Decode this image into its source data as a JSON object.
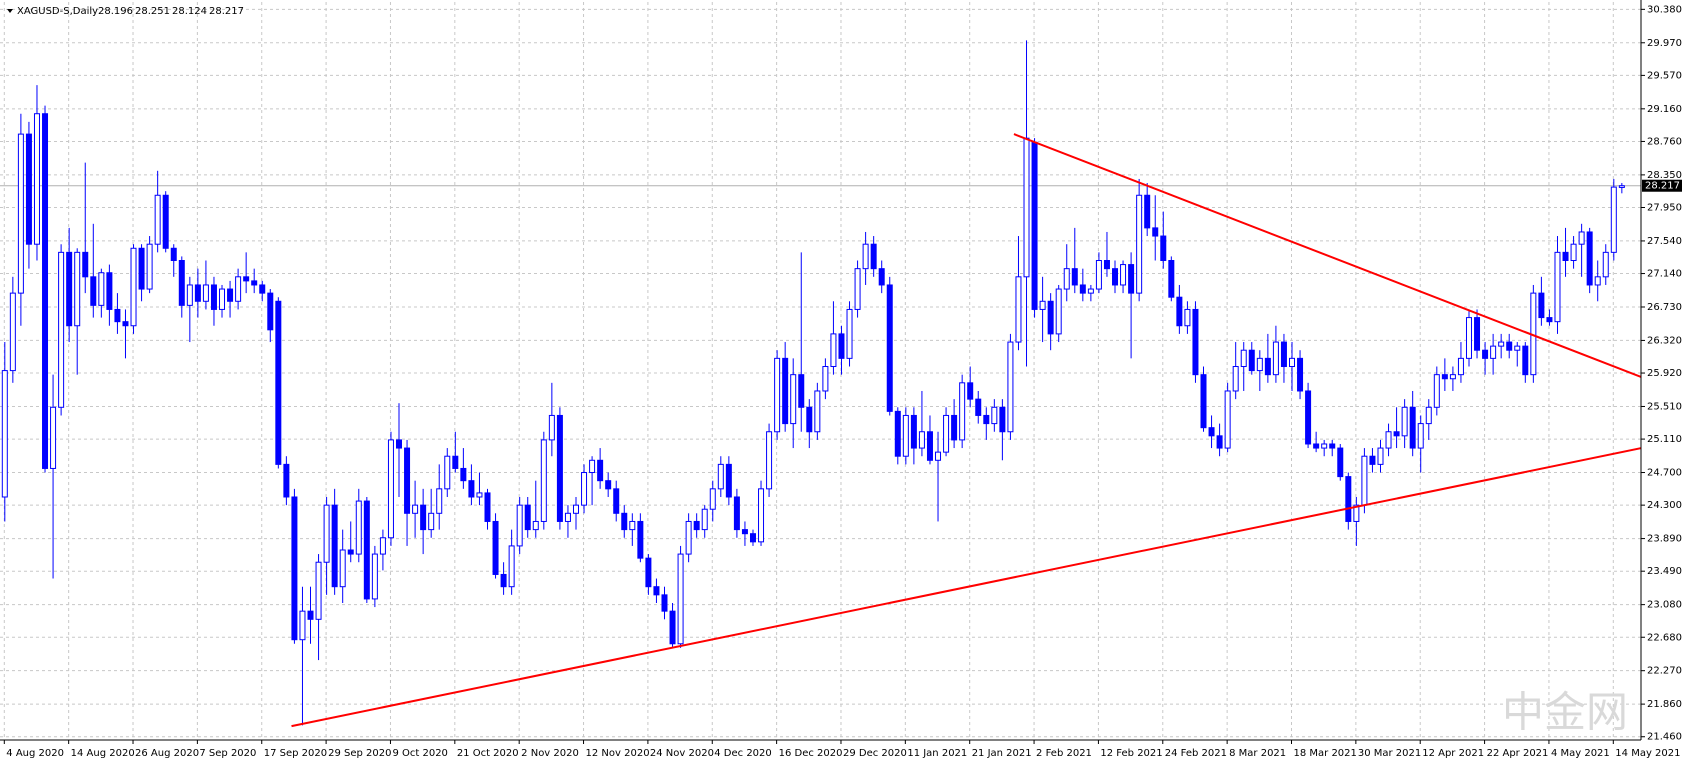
{
  "chart_data": {
    "type": "candlestick",
    "symbol": "XAGUSD-S,Daily",
    "watermark": "中金网",
    "up_color": "#ffffff",
    "down_color": "#0000ff",
    "outline_color": "#0000ff",
    "grid": true,
    "ylim": [
      21.42,
      30.47
    ],
    "yticks": [
      {
        "value": 30.38,
        "label": "30.380"
      },
      {
        "value": 29.97,
        "label": "29.970"
      },
      {
        "value": 29.57,
        "label": "29.570"
      },
      {
        "value": 29.16,
        "label": "29.160"
      },
      {
        "value": 28.76,
        "label": "28.760"
      },
      {
        "value": 28.35,
        "label": "28.350"
      },
      {
        "value": 27.95,
        "label": "27.950"
      },
      {
        "value": 27.54,
        "label": "27.540"
      },
      {
        "value": 27.14,
        "label": "27.140"
      },
      {
        "value": 26.73,
        "label": "26.730"
      },
      {
        "value": 26.32,
        "label": "26.320"
      },
      {
        "value": 25.92,
        "label": "25.920"
      },
      {
        "value": 25.51,
        "label": "25.510"
      },
      {
        "value": 25.11,
        "label": "25.110"
      },
      {
        "value": 24.7,
        "label": "24.700"
      },
      {
        "value": 24.3,
        "label": "24.300"
      },
      {
        "value": 23.89,
        "label": "23.890"
      },
      {
        "value": 23.49,
        "label": "23.490"
      },
      {
        "value": 23.08,
        "label": "23.080"
      },
      {
        "value": 22.68,
        "label": "22.680"
      },
      {
        "value": 22.27,
        "label": "22.270"
      },
      {
        "value": 21.86,
        "label": "21.860"
      },
      {
        "value": 21.46,
        "label": "21.460"
      }
    ],
    "categories": [
      "4 Aug 2020",
      null,
      null,
      null,
      null,
      null,
      null,
      null,
      "14 Aug 2020",
      null,
      null,
      null,
      null,
      null,
      null,
      null,
      "26 Aug 2020",
      null,
      null,
      null,
      null,
      null,
      null,
      null,
      "7 Sep 2020",
      null,
      null,
      null,
      null,
      null,
      null,
      null,
      "17 Sep 2020",
      null,
      null,
      null,
      null,
      null,
      null,
      null,
      "29 Sep 2020",
      null,
      null,
      null,
      null,
      null,
      null,
      null,
      "9 Oct 2020",
      null,
      null,
      null,
      null,
      null,
      null,
      null,
      "21 Oct 2020",
      null,
      null,
      null,
      null,
      null,
      null,
      null,
      "2 Nov 2020",
      null,
      null,
      null,
      null,
      null,
      null,
      null,
      "12 Nov 2020",
      null,
      null,
      null,
      null,
      null,
      null,
      null,
      "24 Nov 2020",
      null,
      null,
      null,
      null,
      null,
      null,
      null,
      "4 Dec 2020",
      null,
      null,
      null,
      null,
      null,
      null,
      null,
      "16 Dec 2020",
      null,
      null,
      null,
      null,
      null,
      null,
      null,
      "29 Dec 2020",
      null,
      null,
      null,
      null,
      null,
      null,
      null,
      "11 Jan 2021",
      null,
      null,
      null,
      null,
      null,
      null,
      null,
      "21 Jan 2021",
      null,
      null,
      null,
      null,
      null,
      null,
      null,
      "2 Feb 2021",
      null,
      null,
      null,
      null,
      null,
      null,
      null,
      "12 Feb 2021",
      null,
      null,
      null,
      null,
      null,
      null,
      null,
      "24 Feb 2021",
      null,
      null,
      null,
      null,
      null,
      null,
      null,
      "8 Mar 2021",
      null,
      null,
      null,
      null,
      null,
      null,
      null,
      "18 Mar 2021",
      null,
      null,
      null,
      null,
      null,
      null,
      null,
      "30 Mar 2021",
      null,
      null,
      null,
      null,
      null,
      null,
      null,
      "12 Apr 2021",
      null,
      null,
      null,
      null,
      null,
      null,
      null,
      "22 Apr 2021",
      null,
      null,
      null,
      null,
      null,
      null,
      null,
      "4 May 2021",
      null,
      null,
      null,
      null,
      null,
      null,
      null,
      "14 May 2021",
      null,
      null
    ],
    "candles": [
      [
        24.4,
        26.3,
        24.1,
        25.95
      ],
      [
        25.95,
        27.1,
        25.8,
        26.9
      ],
      [
        26.9,
        29.1,
        26.5,
        28.85
      ],
      [
        28.85,
        29.0,
        27.2,
        27.5
      ],
      [
        27.5,
        29.45,
        27.3,
        29.1
      ],
      [
        29.1,
        29.2,
        24.7,
        24.75
      ],
      [
        24.75,
        25.9,
        23.4,
        25.5
      ],
      [
        25.5,
        27.5,
        25.4,
        27.4
      ],
      [
        27.4,
        27.7,
        26.3,
        26.5
      ],
      [
        26.5,
        27.45,
        25.9,
        27.4
      ],
      [
        27.4,
        28.5,
        26.9,
        27.1
      ],
      [
        27.1,
        27.75,
        26.6,
        26.75
      ],
      [
        26.75,
        27.2,
        26.6,
        27.15
      ],
      [
        27.15,
        27.25,
        26.5,
        26.7
      ],
      [
        26.7,
        26.9,
        26.4,
        26.55
      ],
      [
        26.55,
        26.7,
        26.1,
        26.5
      ],
      [
        26.5,
        27.5,
        26.4,
        27.45
      ],
      [
        27.45,
        27.5,
        26.8,
        26.95
      ],
      [
        26.95,
        27.6,
        26.9,
        27.5
      ],
      [
        27.5,
        28.4,
        27.4,
        28.1
      ],
      [
        28.1,
        28.15,
        27.4,
        27.45
      ],
      [
        27.45,
        27.5,
        27.1,
        27.3
      ],
      [
        27.3,
        27.35,
        26.6,
        26.75
      ],
      [
        26.75,
        27.1,
        26.3,
        27.0
      ],
      [
        27.0,
        27.2,
        26.6,
        26.8
      ],
      [
        26.8,
        27.3,
        26.7,
        27.0
      ],
      [
        27.0,
        27.1,
        26.5,
        26.7
      ],
      [
        26.7,
        27.0,
        26.6,
        26.95
      ],
      [
        26.95,
        27.05,
        26.6,
        26.8
      ],
      [
        26.8,
        27.2,
        26.7,
        27.1
      ],
      [
        27.1,
        27.4,
        26.9,
        27.05
      ],
      [
        27.05,
        27.2,
        26.9,
        27.0
      ],
      [
        27.0,
        27.05,
        26.8,
        26.9
      ],
      [
        26.9,
        26.95,
        26.3,
        26.45
      ],
      [
        26.8,
        26.85,
        24.75,
        24.8
      ],
      [
        24.8,
        24.9,
        24.3,
        24.4
      ],
      [
        24.4,
        24.5,
        22.6,
        22.65
      ],
      [
        22.65,
        23.3,
        21.6,
        23.0
      ],
      [
        23.0,
        23.3,
        22.6,
        22.9
      ],
      [
        22.9,
        23.7,
        22.4,
        23.6
      ],
      [
        23.6,
        24.4,
        23.2,
        24.3
      ],
      [
        24.3,
        24.5,
        23.2,
        23.3
      ],
      [
        23.3,
        24.0,
        23.1,
        23.75
      ],
      [
        23.75,
        24.1,
        23.6,
        23.7
      ],
      [
        23.7,
        24.5,
        23.6,
        24.35
      ],
      [
        24.35,
        24.4,
        23.1,
        23.15
      ],
      [
        23.15,
        23.8,
        23.05,
        23.7
      ],
      [
        23.7,
        24.0,
        23.5,
        23.9
      ],
      [
        23.9,
        25.2,
        23.8,
        25.1
      ],
      [
        25.1,
        25.55,
        24.4,
        25.0
      ],
      [
        25.0,
        25.1,
        23.8,
        24.2
      ],
      [
        24.2,
        24.6,
        23.9,
        24.3
      ],
      [
        24.3,
        24.5,
        23.7,
        24.0
      ],
      [
        24.0,
        24.5,
        23.9,
        24.2
      ],
      [
        24.2,
        24.8,
        24.0,
        24.5
      ],
      [
        24.5,
        25.0,
        24.4,
        24.9
      ],
      [
        24.9,
        25.2,
        24.7,
        24.75
      ],
      [
        24.75,
        25.0,
        24.5,
        24.6
      ],
      [
        24.6,
        24.8,
        24.3,
        24.4
      ],
      [
        24.4,
        24.7,
        24.3,
        24.45
      ],
      [
        24.45,
        24.5,
        24.0,
        24.1
      ],
      [
        24.1,
        24.2,
        23.4,
        23.45
      ],
      [
        23.45,
        23.6,
        23.2,
        23.3
      ],
      [
        23.3,
        24.0,
        23.2,
        23.8
      ],
      [
        23.8,
        24.4,
        23.7,
        24.3
      ],
      [
        24.3,
        24.4,
        23.9,
        24.0
      ],
      [
        24.0,
        24.6,
        23.9,
        24.1
      ],
      [
        24.1,
        25.2,
        24.0,
        25.1
      ],
      [
        25.1,
        25.8,
        24.9,
        25.4
      ],
      [
        25.4,
        25.5,
        24.0,
        24.1
      ],
      [
        24.1,
        24.3,
        23.9,
        24.2
      ],
      [
        24.2,
        24.4,
        24.0,
        24.3
      ],
      [
        24.3,
        24.8,
        24.2,
        24.7
      ],
      [
        24.7,
        24.9,
        24.3,
        24.85
      ],
      [
        24.85,
        25.0,
        24.5,
        24.6
      ],
      [
        24.6,
        24.7,
        24.4,
        24.5
      ],
      [
        24.5,
        24.6,
        24.1,
        24.2
      ],
      [
        24.2,
        24.3,
        23.9,
        24.0
      ],
      [
        24.0,
        24.2,
        23.8,
        24.1
      ],
      [
        24.1,
        24.2,
        23.6,
        23.65
      ],
      [
        23.65,
        23.7,
        23.2,
        23.3
      ],
      [
        23.3,
        23.4,
        23.1,
        23.2
      ],
      [
        23.2,
        23.3,
        22.9,
        23.0
      ],
      [
        23.0,
        23.1,
        22.55,
        22.6
      ],
      [
        22.6,
        23.8,
        22.55,
        23.7
      ],
      [
        23.7,
        24.2,
        23.6,
        24.1
      ],
      [
        24.1,
        24.2,
        23.9,
        24.0
      ],
      [
        24.0,
        24.3,
        23.9,
        24.25
      ],
      [
        24.25,
        24.6,
        24.1,
        24.5
      ],
      [
        24.5,
        24.9,
        24.4,
        24.8
      ],
      [
        24.8,
        24.9,
        24.3,
        24.4
      ],
      [
        24.4,
        24.5,
        23.9,
        24.0
      ],
      [
        24.0,
        24.1,
        23.8,
        23.95
      ],
      [
        23.95,
        24.0,
        23.8,
        23.85
      ],
      [
        23.85,
        24.6,
        23.8,
        24.5
      ],
      [
        24.5,
        25.3,
        24.4,
        25.2
      ],
      [
        25.2,
        26.2,
        25.1,
        26.1
      ],
      [
        26.1,
        26.3,
        25.2,
        25.3
      ],
      [
        25.3,
        26.1,
        25.0,
        25.9
      ],
      [
        25.9,
        27.4,
        25.2,
        25.5
      ],
      [
        25.5,
        25.6,
        25.0,
        25.2
      ],
      [
        25.2,
        25.8,
        25.1,
        25.7
      ],
      [
        25.7,
        26.1,
        25.6,
        26.0
      ],
      [
        26.0,
        26.8,
        25.9,
        26.4
      ],
      [
        26.4,
        26.5,
        25.9,
        26.1
      ],
      [
        26.1,
        26.8,
        26.0,
        26.7
      ],
      [
        26.7,
        27.3,
        26.6,
        27.2
      ],
      [
        27.2,
        27.65,
        27.0,
        27.5
      ],
      [
        27.5,
        27.6,
        27.1,
        27.2
      ],
      [
        27.2,
        27.3,
        26.9,
        27.0
      ],
      [
        27.0,
        27.1,
        25.4,
        25.45
      ],
      [
        25.45,
        25.5,
        24.8,
        24.9
      ],
      [
        24.9,
        25.5,
        24.8,
        25.4
      ],
      [
        25.4,
        25.5,
        24.8,
        25.0
      ],
      [
        25.0,
        25.7,
        24.9,
        25.2
      ],
      [
        25.2,
        25.4,
        24.8,
        24.85
      ],
      [
        24.85,
        25.2,
        24.1,
        24.95
      ],
      [
        24.95,
        25.5,
        24.9,
        25.4
      ],
      [
        25.4,
        25.6,
        25.0,
        25.1
      ],
      [
        25.1,
        25.9,
        25.0,
        25.8
      ],
      [
        25.8,
        26.0,
        25.5,
        25.6
      ],
      [
        25.6,
        25.7,
        25.3,
        25.4
      ],
      [
        25.4,
        25.5,
        25.1,
        25.3
      ],
      [
        25.3,
        25.6,
        25.2,
        25.5
      ],
      [
        25.5,
        25.6,
        24.85,
        25.2
      ],
      [
        25.2,
        26.4,
        25.1,
        26.3
      ],
      [
        26.3,
        27.6,
        26.2,
        27.1
      ],
      [
        27.1,
        30.0,
        26.0,
        28.8
      ],
      [
        28.75,
        28.8,
        26.6,
        26.7
      ],
      [
        26.7,
        27.1,
        26.3,
        26.8
      ],
      [
        26.8,
        26.9,
        26.2,
        26.4
      ],
      [
        26.4,
        27.0,
        26.3,
        26.95
      ],
      [
        26.95,
        27.5,
        26.8,
        27.2
      ],
      [
        27.2,
        27.7,
        26.9,
        27.0
      ],
      [
        27.0,
        27.2,
        26.8,
        26.9
      ],
      [
        26.9,
        27.0,
        26.8,
        26.95
      ],
      [
        26.95,
        27.4,
        26.9,
        27.3
      ],
      [
        27.3,
        27.65,
        27.1,
        27.2
      ],
      [
        27.2,
        27.3,
        26.9,
        27.0
      ],
      [
        27.0,
        27.3,
        26.9,
        27.25
      ],
      [
        27.25,
        27.4,
        26.1,
        26.9
      ],
      [
        26.9,
        28.3,
        26.8,
        28.1
      ],
      [
        28.1,
        28.25,
        27.6,
        27.7
      ],
      [
        27.7,
        28.1,
        27.3,
        27.6
      ],
      [
        27.6,
        27.9,
        27.2,
        27.3
      ],
      [
        27.3,
        27.35,
        26.8,
        26.85
      ],
      [
        26.85,
        27.0,
        26.4,
        26.5
      ],
      [
        26.5,
        26.8,
        26.4,
        26.7
      ],
      [
        26.7,
        26.8,
        25.8,
        25.9
      ],
      [
        25.9,
        26.0,
        25.2,
        25.25
      ],
      [
        25.25,
        25.4,
        25.0,
        25.15
      ],
      [
        25.15,
        25.3,
        24.9,
        25.0
      ],
      [
        25.0,
        25.8,
        24.95,
        25.7
      ],
      [
        25.7,
        26.3,
        25.6,
        26.0
      ],
      [
        26.0,
        26.3,
        25.7,
        26.2
      ],
      [
        26.2,
        26.3,
        25.9,
        25.95
      ],
      [
        25.95,
        26.2,
        25.7,
        26.1
      ],
      [
        26.1,
        26.4,
        25.8,
        25.9
      ],
      [
        25.9,
        26.5,
        25.8,
        26.3
      ],
      [
        26.3,
        26.4,
        25.8,
        26.0
      ],
      [
        26.0,
        26.3,
        25.7,
        26.1
      ],
      [
        26.1,
        26.2,
        25.6,
        25.7
      ],
      [
        25.7,
        25.8,
        25.0,
        25.05
      ],
      [
        25.05,
        25.2,
        24.95,
        25.0
      ],
      [
        25.0,
        25.1,
        24.9,
        25.05
      ],
      [
        25.05,
        25.1,
        24.9,
        25.0
      ],
      [
        25.0,
        25.05,
        24.6,
        24.65
      ],
      [
        24.65,
        24.7,
        24.0,
        24.1
      ],
      [
        24.1,
        24.4,
        23.8,
        24.3
      ],
      [
        24.3,
        25.0,
        24.2,
        24.9
      ],
      [
        24.9,
        25.0,
        24.7,
        24.8
      ],
      [
        24.8,
        25.1,
        24.7,
        25.0
      ],
      [
        25.0,
        25.3,
        24.9,
        25.2
      ],
      [
        25.2,
        25.5,
        25.0,
        25.15
      ],
      [
        25.15,
        25.6,
        25.0,
        25.5
      ],
      [
        25.5,
        25.7,
        24.9,
        25.0
      ],
      [
        25.0,
        25.4,
        24.7,
        25.3
      ],
      [
        25.3,
        25.6,
        25.1,
        25.5
      ],
      [
        25.5,
        26.0,
        25.4,
        25.9
      ],
      [
        25.9,
        26.1,
        25.7,
        25.85
      ],
      [
        25.85,
        26.0,
        25.7,
        25.9
      ],
      [
        25.9,
        26.3,
        25.8,
        26.1
      ],
      [
        26.1,
        26.7,
        26.0,
        26.6
      ],
      [
        26.6,
        26.7,
        26.1,
        26.2
      ],
      [
        26.2,
        26.3,
        25.9,
        26.1
      ],
      [
        26.1,
        26.4,
        25.9,
        26.25
      ],
      [
        26.25,
        26.4,
        26.1,
        26.3
      ],
      [
        26.3,
        26.4,
        26.1,
        26.2
      ],
      [
        26.2,
        26.3,
        26.0,
        26.25
      ],
      [
        26.25,
        26.3,
        25.8,
        25.9
      ],
      [
        25.9,
        27.0,
        25.8,
        26.9
      ],
      [
        26.9,
        27.1,
        26.5,
        26.6
      ],
      [
        26.6,
        26.7,
        26.5,
        26.55
      ],
      [
        26.55,
        27.6,
        26.4,
        27.4
      ],
      [
        27.4,
        27.7,
        27.1,
        27.3
      ],
      [
        27.3,
        27.6,
        27.2,
        27.5
      ],
      [
        27.5,
        27.75,
        27.1,
        27.65
      ],
      [
        27.65,
        27.7,
        26.9,
        27.0
      ],
      [
        27.0,
        27.3,
        26.8,
        27.1
      ],
      [
        27.1,
        27.5,
        27.0,
        27.4
      ],
      [
        27.4,
        28.3,
        27.3,
        28.2
      ],
      [
        28.196,
        28.251,
        28.124,
        28.217
      ]
    ],
    "trendlines": [
      {
        "x": [
          125.5,
          203.5
        ],
        "values": [
          28.85,
          25.87
        ],
        "color": "#ff0000"
      },
      {
        "x": [
          35.7,
          203.5
        ],
        "values": [
          21.59,
          25.0
        ],
        "color": "#ff0000"
      }
    ]
  }
}
